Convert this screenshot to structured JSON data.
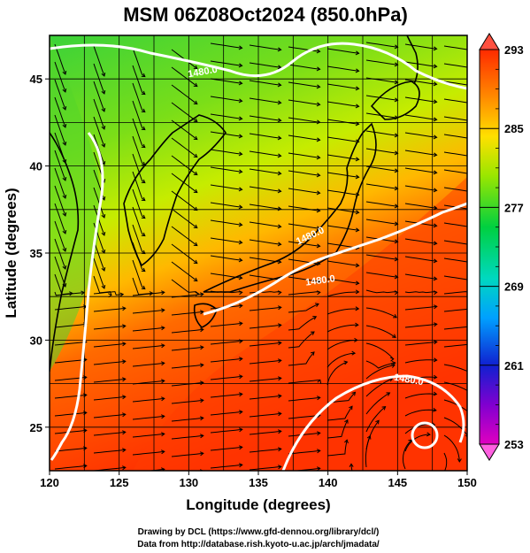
{
  "title": "MSM 06Z08Oct2024 (850.0hPa)",
  "xlabel": "Longitude (degrees)",
  "ylabel": "Latitude  (degrees)",
  "x_ticks": [
    "120",
    "125",
    "130",
    "135",
    "140",
    "145",
    "150"
  ],
  "y_ticks": [
    "25",
    "30",
    "35",
    "40",
    "45"
  ],
  "colorbar_ticks": [
    "293",
    "285",
    "277",
    "269",
    "261",
    "253"
  ],
  "contour_labels": [
    "1480.0",
    "1480.0",
    "1480.0",
    "1480.0"
  ],
  "credits": {
    "line1": "Drawing by DCL (https://www.gfd-dennou.org/library/dcl/)",
    "line2": "Data from http://database.rish.kyoto-u.ac.jp/arch/jmadata/"
  },
  "chart_data": {
    "type": "heatmap",
    "title": "MSM 06Z08Oct2024 (850.0hPa)",
    "xlabel": "Longitude (degrees)",
    "ylabel": "Latitude  (degrees)",
    "xlim": [
      120,
      150
    ],
    "ylim": [
      22.5,
      47.5
    ],
    "x_ticks": [
      120,
      125,
      130,
      135,
      140,
      145,
      150
    ],
    "y_ticks": [
      25,
      30,
      35,
      40,
      45
    ],
    "colorbar": {
      "min": 253,
      "max": 293,
      "ticks": [
        293,
        285,
        277,
        269,
        261,
        253
      ],
      "extend": "both"
    },
    "grid": true,
    "overlays": [
      "streamlines",
      "geopotential contours (white)",
      "coastlines"
    ],
    "contour_value": 1480.0,
    "colors": {
      "warm": "#ff3a00",
      "mid": "#a8ec00",
      "cool": "#00d040",
      "contour": "#ffffff"
    }
  }
}
